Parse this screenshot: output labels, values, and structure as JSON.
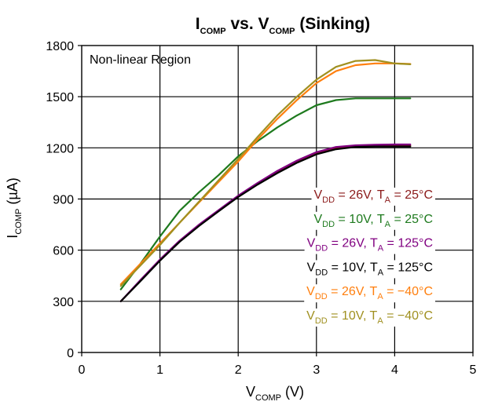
{
  "chart_data": {
    "type": "line",
    "title": {
      "main": "I",
      "main_sub": "COMP",
      "mid": " vs. V",
      "mid_sub": "COMP",
      "end": " (Sinking)"
    },
    "xlabel": {
      "main": "V",
      "sub": "COMP",
      "end": " (V)"
    },
    "ylabel": {
      "main": "I",
      "sub": "COMP",
      "end": " (µA)"
    },
    "xlim": [
      0,
      5
    ],
    "ylim": [
      0,
      1800
    ],
    "xticks": [
      0,
      1,
      2,
      3,
      4,
      5
    ],
    "xtick_labels": [
      "0",
      "1",
      "2",
      "3",
      "4",
      "5"
    ],
    "yticks": [
      0,
      300,
      600,
      900,
      1200,
      1500,
      1800
    ],
    "ytick_labels": [
      "0",
      "300",
      "600",
      "900",
      "1200",
      "1500",
      "1800"
    ],
    "grid": true,
    "annotation": "Non-linear Region",
    "legend_placement": "right",
    "series": [
      {
        "name": "VDD = 26V, TA = 25°C",
        "label": {
          "a": "V",
          "a_sub": "DD",
          "b": " = 26V, T",
          "b_sub": "A",
          "c": " = 25°C"
        },
        "color": "#8b1a1a",
        "x": [
          0.5,
          0.75,
          1.0,
          1.25,
          1.5,
          1.75,
          2.0,
          2.25,
          2.5,
          2.75,
          3.0,
          3.25,
          3.5,
          3.75,
          4.0,
          4.2
        ],
        "y": [
          300,
          420,
          540,
          650,
          745,
          830,
          915,
          990,
          1060,
          1120,
          1170,
          1200,
          1210,
          1212,
          1213,
          1213
        ]
      },
      {
        "name": "VDD = 10V, TA = 25°C",
        "label": {
          "a": "V",
          "a_sub": "DD",
          "b": " = 10V, T",
          "b_sub": "A",
          "c": " = 25°C"
        },
        "color": "#1e7a1e",
        "x": [
          0.5,
          0.75,
          1.0,
          1.25,
          1.5,
          1.75,
          2.0,
          2.25,
          2.5,
          2.75,
          3.0,
          3.25,
          3.5,
          3.75,
          4.0,
          4.2
        ],
        "y": [
          370,
          520,
          680,
          830,
          940,
          1040,
          1150,
          1240,
          1320,
          1390,
          1450,
          1480,
          1490,
          1490,
          1490,
          1490
        ]
      },
      {
        "name": "VDD = 26V, TA = 125°C",
        "label": {
          "a": "V",
          "a_sub": "DD",
          "b": " = 26V, T",
          "b_sub": "A",
          "c": " = 125°C"
        },
        "color": "#800080",
        "x": [
          0.5,
          0.75,
          1.0,
          1.25,
          1.5,
          1.75,
          2.0,
          2.25,
          2.5,
          2.75,
          3.0,
          3.25,
          3.5,
          3.75,
          4.0,
          4.2
        ],
        "y": [
          300,
          425,
          545,
          655,
          750,
          835,
          920,
          995,
          1065,
          1125,
          1175,
          1205,
          1215,
          1218,
          1220,
          1220
        ]
      },
      {
        "name": "VDD = 10V, TA = 125°C",
        "label": {
          "a": "V",
          "a_sub": "DD",
          "b": " = 10V, T",
          "b_sub": "A",
          "c": " = 125°C"
        },
        "color": "#000000",
        "x": [
          0.5,
          0.75,
          1.0,
          1.25,
          1.5,
          1.75,
          2.0,
          2.25,
          2.5,
          2.75,
          3.0,
          3.25,
          3.5,
          3.75,
          4.0,
          4.2
        ],
        "y": [
          300,
          418,
          538,
          648,
          742,
          828,
          912,
          985,
          1052,
          1112,
          1162,
          1192,
          1205,
          1208,
          1208,
          1208
        ]
      },
      {
        "name": "VDD = 26V, TA = −40°C",
        "label": {
          "a": "V",
          "a_sub": "DD",
          "b": " = 26V, T",
          "b_sub": "A",
          "c": " = −40°C"
        },
        "color": "#ff7f0e",
        "x": [
          0.5,
          0.75,
          1.0,
          1.25,
          1.5,
          1.75,
          2.0,
          2.25,
          2.5,
          2.75,
          3.0,
          3.25,
          3.5,
          3.75,
          4.0,
          4.2
        ],
        "y": [
          400,
          520,
          640,
          760,
          880,
          1000,
          1120,
          1250,
          1370,
          1480,
          1580,
          1650,
          1685,
          1695,
          1695,
          1692
        ]
      },
      {
        "name": "VDD = 10V, TA = −40°C",
        "label": {
          "a": "V",
          "a_sub": "DD",
          "b": " = 10V, T",
          "b_sub": "A",
          "c": " = −40°C"
        },
        "color": "#a09020",
        "x": [
          0.5,
          0.75,
          1.0,
          1.25,
          1.5,
          1.75,
          2.0,
          2.25,
          2.5,
          2.75,
          3.0,
          3.25,
          3.5,
          3.75,
          4.0,
          4.2
        ],
        "y": [
          390,
          510,
          630,
          760,
          885,
          1010,
          1135,
          1265,
          1390,
          1500,
          1600,
          1675,
          1710,
          1715,
          1695,
          1690
        ]
      }
    ]
  }
}
